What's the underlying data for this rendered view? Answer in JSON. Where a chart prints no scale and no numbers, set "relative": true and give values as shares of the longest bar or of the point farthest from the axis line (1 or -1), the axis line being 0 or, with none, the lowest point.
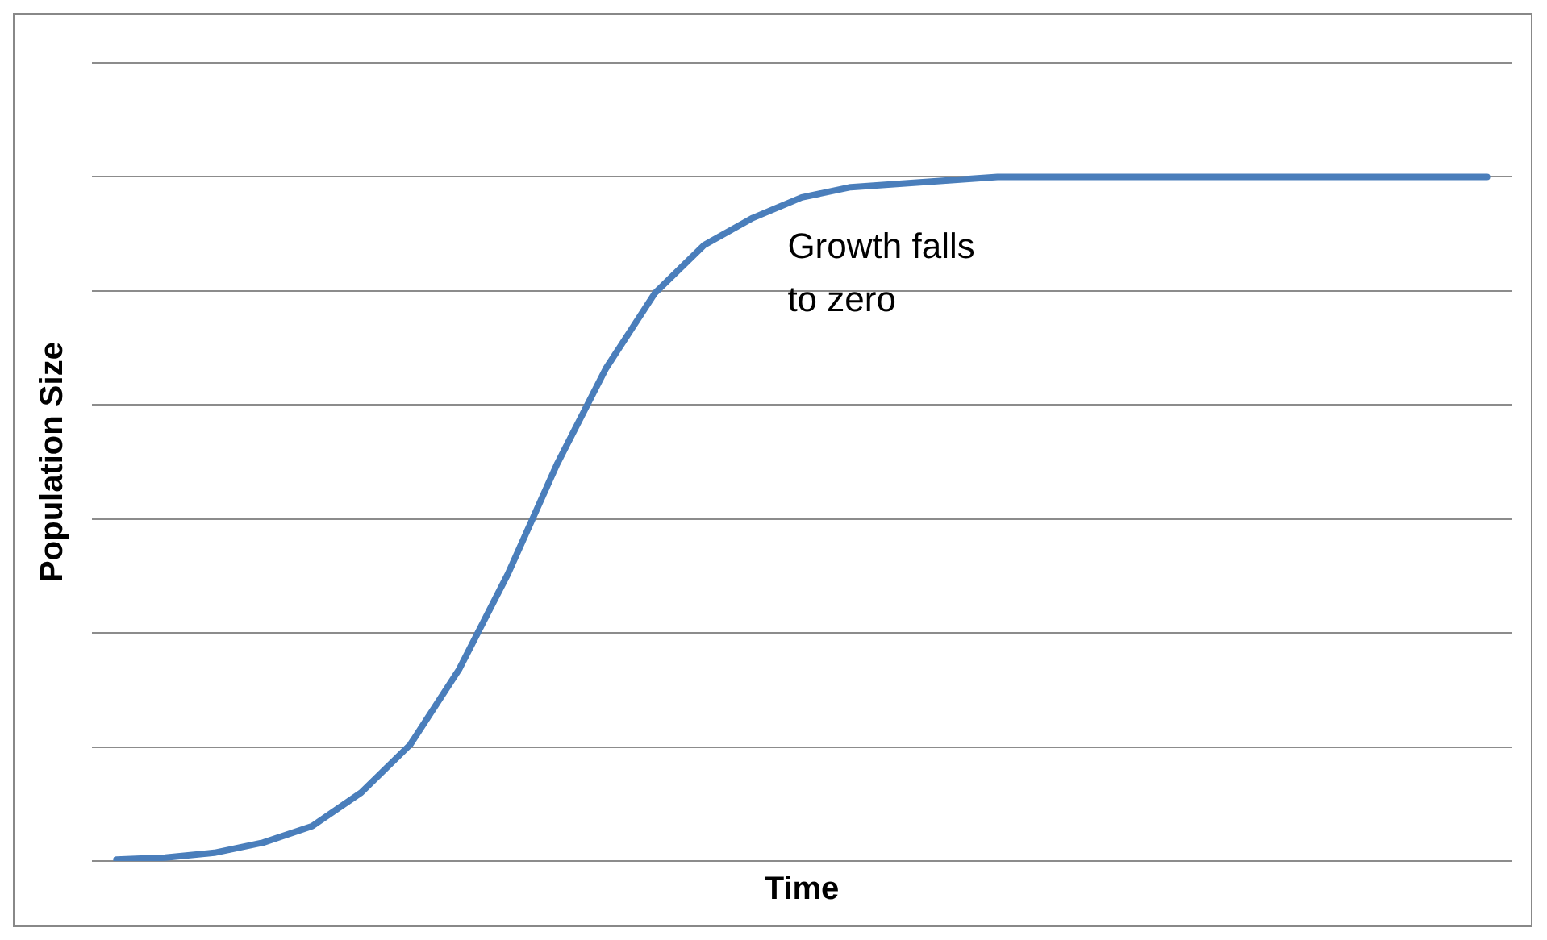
{
  "chart_data": {
    "type": "line",
    "relative": true,
    "xlabel": "Time",
    "ylabel": "Population Size",
    "annotations": [
      "Growth falls to zero"
    ],
    "grid": "y",
    "marker": "none",
    "line_style": "solid",
    "legend": false,
    "categories": [
      null,
      null,
      null,
      null,
      null,
      null,
      null,
      null,
      null,
      null,
      null,
      null,
      null,
      null,
      null,
      null,
      null,
      null,
      null,
      null,
      null,
      null,
      null,
      null,
      null,
      null,
      null,
      null,
      null
    ],
    "series": [
      {
        "color": "#4a7ebb",
        "values": [
          0.002,
          0.005,
          0.012,
          0.027,
          0.051,
          0.1,
          0.17,
          0.28,
          0.42,
          0.58,
          0.72,
          0.83,
          0.9,
          0.94,
          0.97,
          0.985,
          0.99,
          0.995,
          1,
          1,
          1,
          1,
          1,
          1,
          1,
          1,
          1,
          1,
          1
        ]
      }
    ]
  }
}
